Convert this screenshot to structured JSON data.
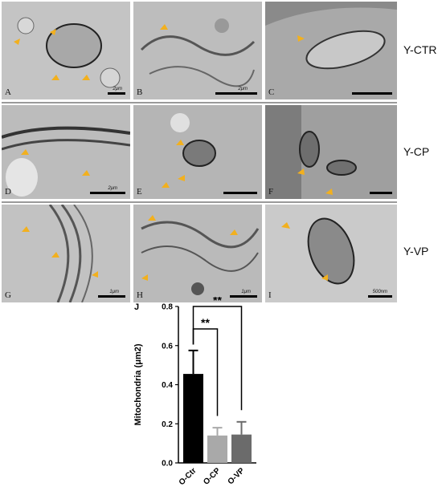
{
  "rows": [
    {
      "label": "Y-CTR",
      "panels": [
        {
          "letter": "A",
          "scale": "2μm"
        },
        {
          "letter": "B",
          "scale": "2μm"
        },
        {
          "letter": "C",
          "scale": ""
        }
      ]
    },
    {
      "label": "Y-CP",
      "panels": [
        {
          "letter": "D",
          "scale": "2μm"
        },
        {
          "letter": "E",
          "scale": ""
        },
        {
          "letter": "F",
          "scale": ""
        }
      ]
    },
    {
      "label": "Y-VP",
      "panels": [
        {
          "letter": "G",
          "scale": "1μm"
        },
        {
          "letter": "H",
          "scale": "1μm"
        },
        {
          "letter": "I",
          "scale": "500nm"
        }
      ]
    }
  ],
  "colors": {
    "arrow": "#f2b01e",
    "bar1": "#000000",
    "bar2": "#a9a9a9",
    "bar3": "#6b6b6b"
  },
  "chart_data": {
    "type": "bar",
    "panel_label": "J",
    "categories": [
      "O-Ctr",
      "O-CP",
      "O-VP"
    ],
    "values": [
      0.455,
      0.14,
      0.145
    ],
    "errors": [
      0.12,
      0.04,
      0.065
    ],
    "ylabel": "Mitochondria (μm2)",
    "ylim": [
      0,
      0.8
    ],
    "yticks": [
      "0.0",
      "0.2",
      "0.4",
      "0.6",
      "0.8"
    ],
    "significance": [
      {
        "from": "O-Ctr",
        "to": "O-CP",
        "label": "**"
      },
      {
        "from": "O-Ctr",
        "to": "O-VP",
        "label": "**"
      }
    ]
  }
}
